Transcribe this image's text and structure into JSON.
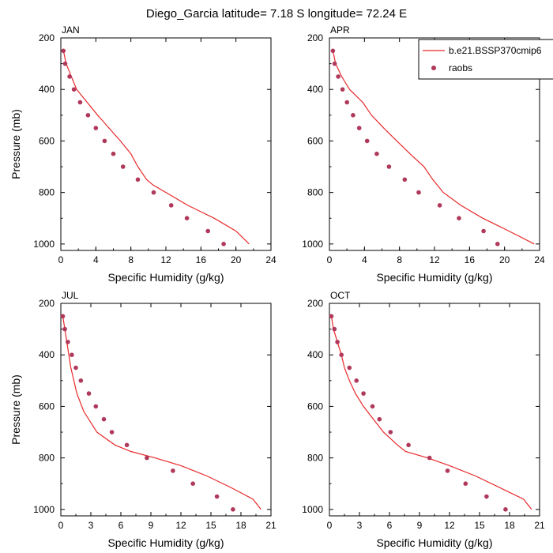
{
  "title": "Diego_Garcia  latitude= 7.18 S longitude= 72.24 E",
  "colors": {
    "model": "#e8282a",
    "obs": "#b0385a",
    "axis": "#000000"
  },
  "legend": {
    "model_label": "b.e21.BSSP370cmip6",
    "obs_label": "raobs",
    "placement": "top-right of APR panel"
  },
  "chart_data": [
    {
      "type": "line",
      "panel": "JAN",
      "xlabel": "Specific Humidity (g/kg)",
      "ylabel": "Pressure (mb)",
      "xlim": [
        0,
        24
      ],
      "ylim": [
        200,
        1025
      ],
      "y_inverted": true,
      "xticks": [
        0,
        4,
        8,
        12,
        16,
        20,
        24
      ],
      "yticks": [
        200,
        400,
        600,
        800,
        1000
      ],
      "series": [
        {
          "name": "b.e21.BSSP370cmip6",
          "kind": "line",
          "points": [
            [
              0.3,
              250
            ],
            [
              0.6,
              300
            ],
            [
              1.2,
              350
            ],
            [
              1.8,
              400
            ],
            [
              3,
              450
            ],
            [
              4.2,
              500
            ],
            [
              5.5,
              550
            ],
            [
              6.8,
              600
            ],
            [
              8,
              650
            ],
            [
              8.8,
              700
            ],
            [
              9.8,
              750
            ],
            [
              10.5,
              770
            ],
            [
              12,
              800
            ],
            [
              14.5,
              850
            ],
            [
              17.5,
              900
            ],
            [
              20,
              950
            ],
            [
              21.5,
              1000
            ]
          ]
        },
        {
          "name": "raobs",
          "kind": "scatter",
          "points": [
            [
              0.3,
              250
            ],
            [
              0.5,
              300
            ],
            [
              1,
              350
            ],
            [
              1.5,
              400
            ],
            [
              2.2,
              450
            ],
            [
              3.1,
              500
            ],
            [
              4,
              550
            ],
            [
              5,
              600
            ],
            [
              6,
              650
            ],
            [
              7.1,
              700
            ],
            [
              8.8,
              750
            ],
            [
              10.6,
              800
            ],
            [
              12.6,
              850
            ],
            [
              14.4,
              900
            ],
            [
              16.8,
              950
            ],
            [
              18.6,
              1000
            ]
          ]
        }
      ]
    },
    {
      "type": "line",
      "panel": "APR",
      "xlabel": "Specific Humidity (g/kg)",
      "ylabel": "",
      "xlim": [
        0,
        24
      ],
      "ylim": [
        200,
        1025
      ],
      "y_inverted": true,
      "xticks": [
        0,
        4,
        8,
        12,
        16,
        20,
        24
      ],
      "yticks": [
        200,
        400,
        600,
        800,
        1000
      ],
      "series": [
        {
          "name": "b.e21.BSSP370cmip6",
          "kind": "line",
          "points": [
            [
              0.4,
              250
            ],
            [
              0.7,
              300
            ],
            [
              1.4,
              350
            ],
            [
              2.3,
              400
            ],
            [
              3.8,
              450
            ],
            [
              4.8,
              500
            ],
            [
              6.2,
              550
            ],
            [
              7.7,
              600
            ],
            [
              9.2,
              650
            ],
            [
              10.8,
              700
            ],
            [
              11.8,
              750
            ],
            [
              13,
              800
            ],
            [
              15,
              850
            ],
            [
              17.5,
              900
            ],
            [
              20.5,
              950
            ],
            [
              23.4,
              1000
            ]
          ]
        },
        {
          "name": "raobs",
          "kind": "scatter",
          "points": [
            [
              0.4,
              250
            ],
            [
              0.6,
              300
            ],
            [
              1,
              350
            ],
            [
              1.5,
              400
            ],
            [
              2,
              450
            ],
            [
              2.7,
              500
            ],
            [
              3.4,
              550
            ],
            [
              4.3,
              600
            ],
            [
              5.4,
              650
            ],
            [
              6.8,
              700
            ],
            [
              8.6,
              750
            ],
            [
              10.2,
              800
            ],
            [
              12.6,
              850
            ],
            [
              14.8,
              900
            ],
            [
              17.6,
              950
            ],
            [
              19.2,
              1000
            ]
          ]
        }
      ]
    },
    {
      "type": "line",
      "panel": "JUL",
      "xlabel": "Specific Humidity (g/kg)",
      "ylabel": "Pressure (mb)",
      "xlim": [
        0,
        21
      ],
      "ylim": [
        200,
        1025
      ],
      "y_inverted": true,
      "xticks": [
        0,
        3,
        6,
        9,
        12,
        15,
        18,
        21
      ],
      "yticks": [
        200,
        400,
        600,
        800,
        1000
      ],
      "series": [
        {
          "name": "b.e21.BSSP370cmip6",
          "kind": "line",
          "points": [
            [
              0.2,
              250
            ],
            [
              0.4,
              300
            ],
            [
              0.6,
              350
            ],
            [
              0.8,
              400
            ],
            [
              1,
              450
            ],
            [
              1.3,
              500
            ],
            [
              1.6,
              550
            ],
            [
              2.3,
              620
            ],
            [
              3.6,
              700
            ],
            [
              5.4,
              750
            ],
            [
              7,
              775
            ],
            [
              9.4,
              800
            ],
            [
              12,
              830
            ],
            [
              14.6,
              870
            ],
            [
              17,
              915
            ],
            [
              19.2,
              960
            ],
            [
              20,
              1000
            ]
          ]
        },
        {
          "name": "raobs",
          "kind": "scatter",
          "points": [
            [
              0.2,
              250
            ],
            [
              0.4,
              300
            ],
            [
              0.7,
              350
            ],
            [
              1.1,
              400
            ],
            [
              1.5,
              450
            ],
            [
              2,
              500
            ],
            [
              2.8,
              550
            ],
            [
              3.5,
              600
            ],
            [
              4.3,
              650
            ],
            [
              5.1,
              700
            ],
            [
              6.6,
              750
            ],
            [
              8.6,
              800
            ],
            [
              11.2,
              850
            ],
            [
              13.2,
              900
            ],
            [
              15.6,
              950
            ],
            [
              17.2,
              1000
            ]
          ]
        }
      ]
    },
    {
      "type": "line",
      "panel": "OCT",
      "xlabel": "Specific Humidity (g/kg)",
      "ylabel": "",
      "xlim": [
        0,
        21
      ],
      "ylim": [
        200,
        1025
      ],
      "y_inverted": true,
      "xticks": [
        0,
        3,
        6,
        9,
        12,
        15,
        18,
        21
      ],
      "yticks": [
        200,
        400,
        600,
        800,
        1000
      ],
      "series": [
        {
          "name": "b.e21.BSSP370cmip6",
          "kind": "line",
          "points": [
            [
              0.2,
              250
            ],
            [
              0.4,
              300
            ],
            [
              0.8,
              350
            ],
            [
              1.2,
              400
            ],
            [
              1.5,
              450
            ],
            [
              2,
              500
            ],
            [
              2.6,
              550
            ],
            [
              3.4,
              600
            ],
            [
              4.4,
              650
            ],
            [
              5.4,
              700
            ],
            [
              6.8,
              750
            ],
            [
              7.6,
              775
            ],
            [
              9.8,
              800
            ],
            [
              12,
              830
            ],
            [
              14.6,
              870
            ],
            [
              17,
              915
            ],
            [
              19.4,
              960
            ],
            [
              20.2,
              1000
            ]
          ]
        },
        {
          "name": "raobs",
          "kind": "scatter",
          "points": [
            [
              0.2,
              250
            ],
            [
              0.5,
              300
            ],
            [
              0.8,
              350
            ],
            [
              1.2,
              400
            ],
            [
              2,
              450
            ],
            [
              2.7,
              500
            ],
            [
              3.4,
              550
            ],
            [
              4.3,
              600
            ],
            [
              5,
              650
            ],
            [
              6.1,
              700
            ],
            [
              7.9,
              750
            ],
            [
              10,
              800
            ],
            [
              11.8,
              850
            ],
            [
              13.6,
              900
            ],
            [
              15.7,
              950
            ],
            [
              17.6,
              1000
            ]
          ]
        }
      ]
    }
  ]
}
